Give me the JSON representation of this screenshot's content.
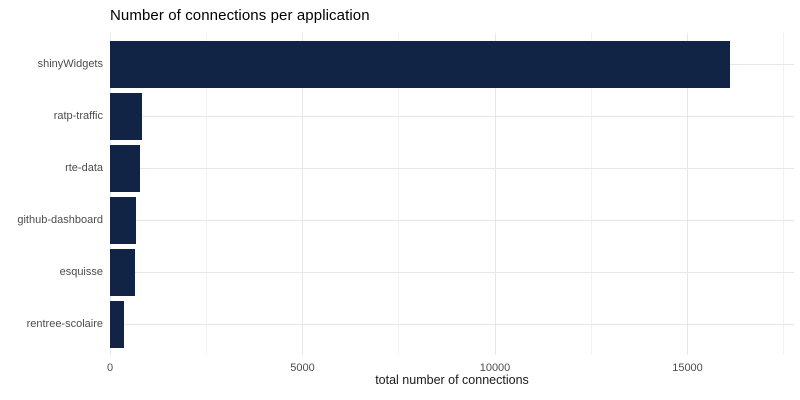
{
  "title": "Number of connections per application",
  "chart_data": {
    "type": "bar",
    "orientation": "horizontal",
    "title": "Number of connections per application",
    "xlabel": "total number of connections",
    "ylabel": "",
    "categories": [
      "shinyWidgets",
      "ratp-traffic",
      "rte-data",
      "github-dashboard",
      "esquisse",
      "rentree-scolaire"
    ],
    "values": [
      16100,
      830,
      780,
      680,
      650,
      360
    ],
    "xlim": [
      0,
      17760
    ],
    "x_major_ticks": [
      0,
      5000,
      10000,
      15000
    ],
    "x_minor_ticks": [
      2500,
      7500,
      12500,
      17500
    ],
    "x_tick_labels": [
      "0",
      "5000",
      "10000",
      "15000"
    ],
    "grid": true,
    "legend": "none",
    "colors": {
      "bar_fill": "#112446",
      "grid_major": "#e7e7e7",
      "grid_minor": "#f2f2f2",
      "axis_text": "#4d4d4d",
      "axis_title": "#1a1a1a",
      "title_text": "#000000",
      "background": "#ffffff"
    }
  }
}
